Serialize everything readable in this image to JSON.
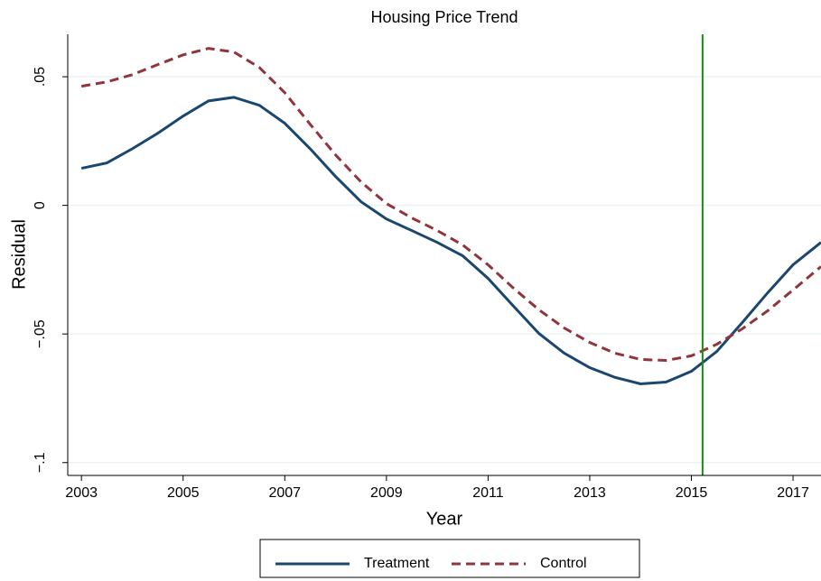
{
  "chart_data": {
    "type": "line",
    "title": "Housing Price Trend",
    "x_label": "Year",
    "y_label": "Residual",
    "x": [
      2003,
      2003.5,
      2004,
      2004.5,
      2005,
      2005.5,
      2006,
      2006.5,
      2007,
      2007.5,
      2008,
      2008.5,
      2009,
      2009.5,
      2010,
      2010.5,
      2011,
      2011.5,
      2012,
      2012.5,
      2013,
      2013.5,
      2014,
      2014.5,
      2015,
      2015.5,
      2016,
      2016.5,
      2017,
      2017.55
    ],
    "series": [
      {
        "name": "Treatment",
        "color": "#1a476f",
        "dash": false,
        "values": [
          0.0144,
          0.0165,
          0.022,
          0.028,
          0.0347,
          0.0406,
          0.042,
          0.0389,
          0.0319,
          0.022,
          0.0112,
          0.0014,
          -0.0053,
          -0.0098,
          -0.0144,
          -0.0196,
          -0.0284,
          -0.0392,
          -0.0498,
          -0.0575,
          -0.0631,
          -0.0669,
          -0.0694,
          -0.0687,
          -0.0645,
          -0.0568,
          -0.0456,
          -0.034,
          -0.0231,
          -0.0144
        ]
      },
      {
        "name": "Control",
        "color": "#90353b",
        "dash": true,
        "values": [
          0.0463,
          0.048,
          0.0508,
          0.0547,
          0.0585,
          0.061,
          0.0596,
          0.0536,
          0.0438,
          0.0315,
          0.0196,
          0.0091,
          0.0007,
          -0.0049,
          -0.0098,
          -0.0154,
          -0.0231,
          -0.0322,
          -0.0406,
          -0.0477,
          -0.0533,
          -0.0575,
          -0.0599,
          -0.0603,
          -0.0585,
          -0.054,
          -0.048,
          -0.041,
          -0.0329,
          -0.0238
        ]
      }
    ],
    "xline": {
      "value": 2015.22,
      "color": "#1a8a1a"
    },
    "xlim": [
      2002.73,
      2017.55
    ],
    "xticks": [
      2003,
      2005,
      2007,
      2009,
      2011,
      2013,
      2015,
      2017
    ],
    "ylim": [
      -0.105,
      0.0665
    ],
    "yticks": [
      {
        "value": -0.1,
        "label": "−.1"
      },
      {
        "value": -0.05,
        "label": "−.05"
      },
      0,
      {
        "value": 0.05,
        "label": ".05"
      }
    ],
    "grid": true,
    "legend": "bottom"
  }
}
